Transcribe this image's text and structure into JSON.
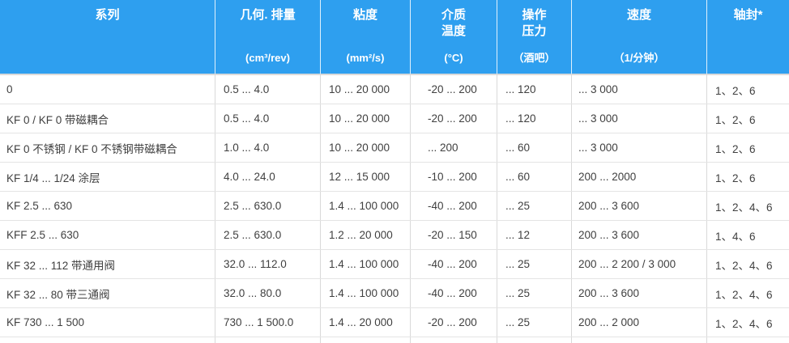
{
  "colors": {
    "header_bg": "#2E9FEF",
    "header_text": "#FFFFFF",
    "body_text": "#404040",
    "row_border": "#E4E4E4",
    "column_border": "#D9D9D9",
    "header_border_bottom": "#DADADA"
  },
  "table": {
    "columns": [
      {
        "title": "系列",
        "unit": ""
      },
      {
        "title": "几何. 排量",
        "unit": "(cm³/rev)"
      },
      {
        "title": "粘度",
        "unit": "(mm²/s)"
      },
      {
        "title": "介质\n温度",
        "unit": "(°C)"
      },
      {
        "title": "操作\n压力",
        "unit": "（酒吧）"
      },
      {
        "title": "速度",
        "unit": "（1/分钟）"
      },
      {
        "title": "轴封*",
        "unit": ""
      }
    ],
    "rows": [
      [
        "0",
        "0.5 ... 4.0",
        "10 ... 20 000",
        "-20 ... 200",
        "... 120",
        "... 3 000",
        "1、2、6"
      ],
      [
        "KF 0 / KF 0 带磁耦合",
        "0.5 ... 4.0",
        "10 ... 20 000",
        "-20 ... 200",
        "... 120",
        "... 3 000",
        "1、2、6"
      ],
      [
        "KF 0 不锈钢 / KF 0 不锈钢带磁耦合",
        "1.0 ... 4.0",
        "10 ... 20 000",
        "... 200",
        "... 60",
        "... 3 000",
        "1、2、6"
      ],
      [
        "KF 1/4 ... 1/24 涂层",
        "4.0 ... 24.0",
        "12 ... 15 000",
        "-10 ... 200",
        "... 60",
        "200 ... 2000",
        "1、2、6"
      ],
      [
        "KF 2.5 ... 630",
        "2.5 ... 630.0",
        "1.4 ... 100 000",
        "-40 ... 200",
        "... 25",
        "200 ... 3 600",
        "1、2、4、6"
      ],
      [
        "KFF 2.5 ... 630",
        "2.5 ... 630.0",
        "1.2 ... 20 000",
        "-20 ... 150",
        "... 12",
        "200 ... 3 600",
        "1、4、6"
      ],
      [
        "KF 32 ... 112 带通用阀",
        "32.0 ... 112.0",
        "1.4 ... 100 000",
        "-40 ... 200",
        "... 25",
        "200 ... 2 200 / 3 000",
        "1、2、4、6"
      ],
      [
        "KF 32 ... 80 带三通阀",
        "32.0 ... 80.0",
        "1.4 ... 100 000",
        "-40 ... 200",
        "... 25",
        "200 ... 3 600",
        "1、2、4、6"
      ],
      [
        "KF 730 ... 1 500",
        "730 ... 1 500.0",
        "1.4 ... 20 000",
        "-20 ... 200",
        "... 25",
        "200 ... 2 000",
        "1、2、4、6"
      ]
    ]
  }
}
